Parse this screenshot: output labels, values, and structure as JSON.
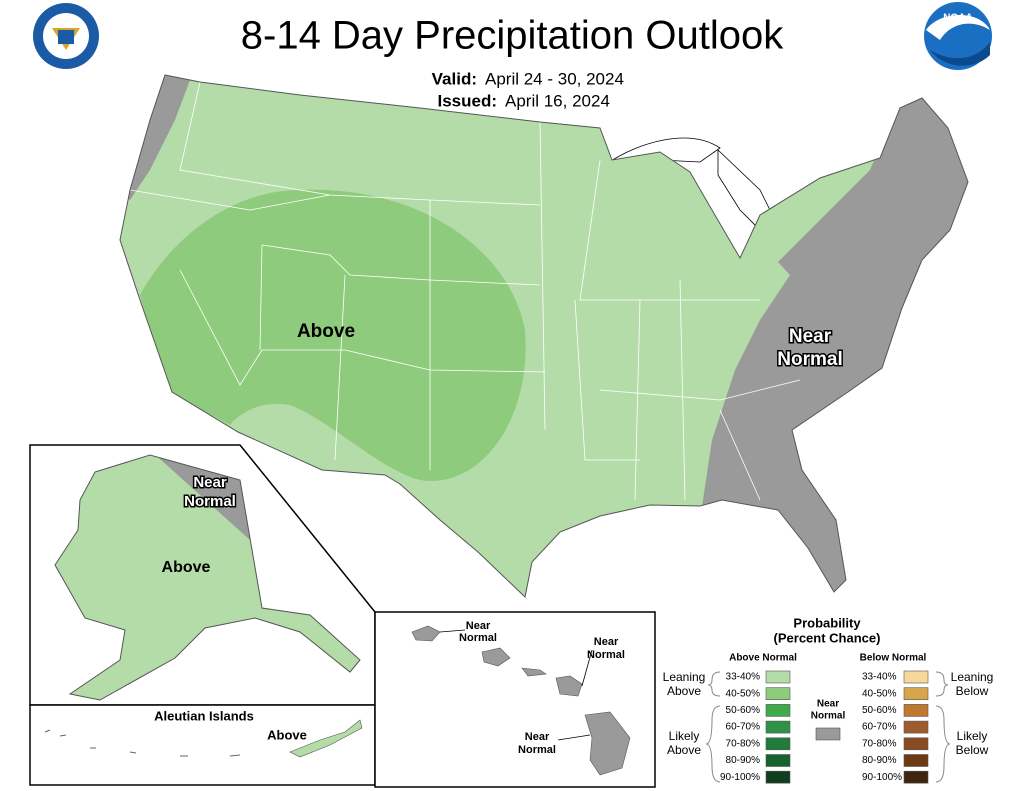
{
  "header": {
    "title": "8-14 Day Precipitation Outlook",
    "valid_label": "Valid:",
    "valid": "April 24 - 30, 2024",
    "issued_label": "Issued:",
    "issued": "April 16, 2024",
    "noaa": "NOAA"
  },
  "map": {
    "conus_labels": [
      {
        "lines": [
          "Above"
        ]
      },
      {
        "lines": [
          "Near",
          "Normal"
        ]
      }
    ],
    "alaska_labels": [
      {
        "lines": [
          "Near",
          "Normal"
        ]
      },
      {
        "lines": [
          "Above"
        ]
      }
    ],
    "aleutian": {
      "title": "Aleutian Islands",
      "label": "Above"
    },
    "hawaii_labels": [
      {
        "lines": [
          "Near",
          "Normal"
        ]
      },
      {
        "lines": [
          "Near",
          "Normal"
        ]
      },
      {
        "lines": [
          "Near",
          "Normal"
        ]
      }
    ]
  },
  "legend": {
    "title": "Probability",
    "subtitle": "(Percent Chance)",
    "above_header": "Above Normal",
    "below_header": "Below Normal",
    "near_normal": {
      "lines": [
        "Near",
        "Normal"
      ],
      "color": "#9a9a9a"
    },
    "leaning_above": [
      "Leaning",
      "Above"
    ],
    "likely_above": [
      "Likely",
      "Above"
    ],
    "leaning_below": [
      "Leaning",
      "Below"
    ],
    "likely_below": [
      "Likely",
      "Below"
    ],
    "above": [
      {
        "label": "33-40%",
        "color": "#b4dca8"
      },
      {
        "label": "40-50%",
        "color": "#8fcb7c"
      },
      {
        "label": "50-60%",
        "color": "#3fa94b"
      },
      {
        "label": "60-70%",
        "color": "#2f9347"
      },
      {
        "label": "70-80%",
        "color": "#217c3b"
      },
      {
        "label": "80-90%",
        "color": "#17622f"
      },
      {
        "label": "90-100%",
        "color": "#0f3f1e"
      }
    ],
    "below": [
      {
        "label": "33-40%",
        "color": "#f6d89a"
      },
      {
        "label": "40-50%",
        "color": "#d9a54b"
      },
      {
        "label": "50-60%",
        "color": "#c0772e"
      },
      {
        "label": "60-70%",
        "color": "#a05b2c"
      },
      {
        "label": "70-80%",
        "color": "#8a4a21"
      },
      {
        "label": "80-90%",
        "color": "#6d3a12"
      },
      {
        "label": "90-100%",
        "color": "#3f2510"
      }
    ]
  }
}
